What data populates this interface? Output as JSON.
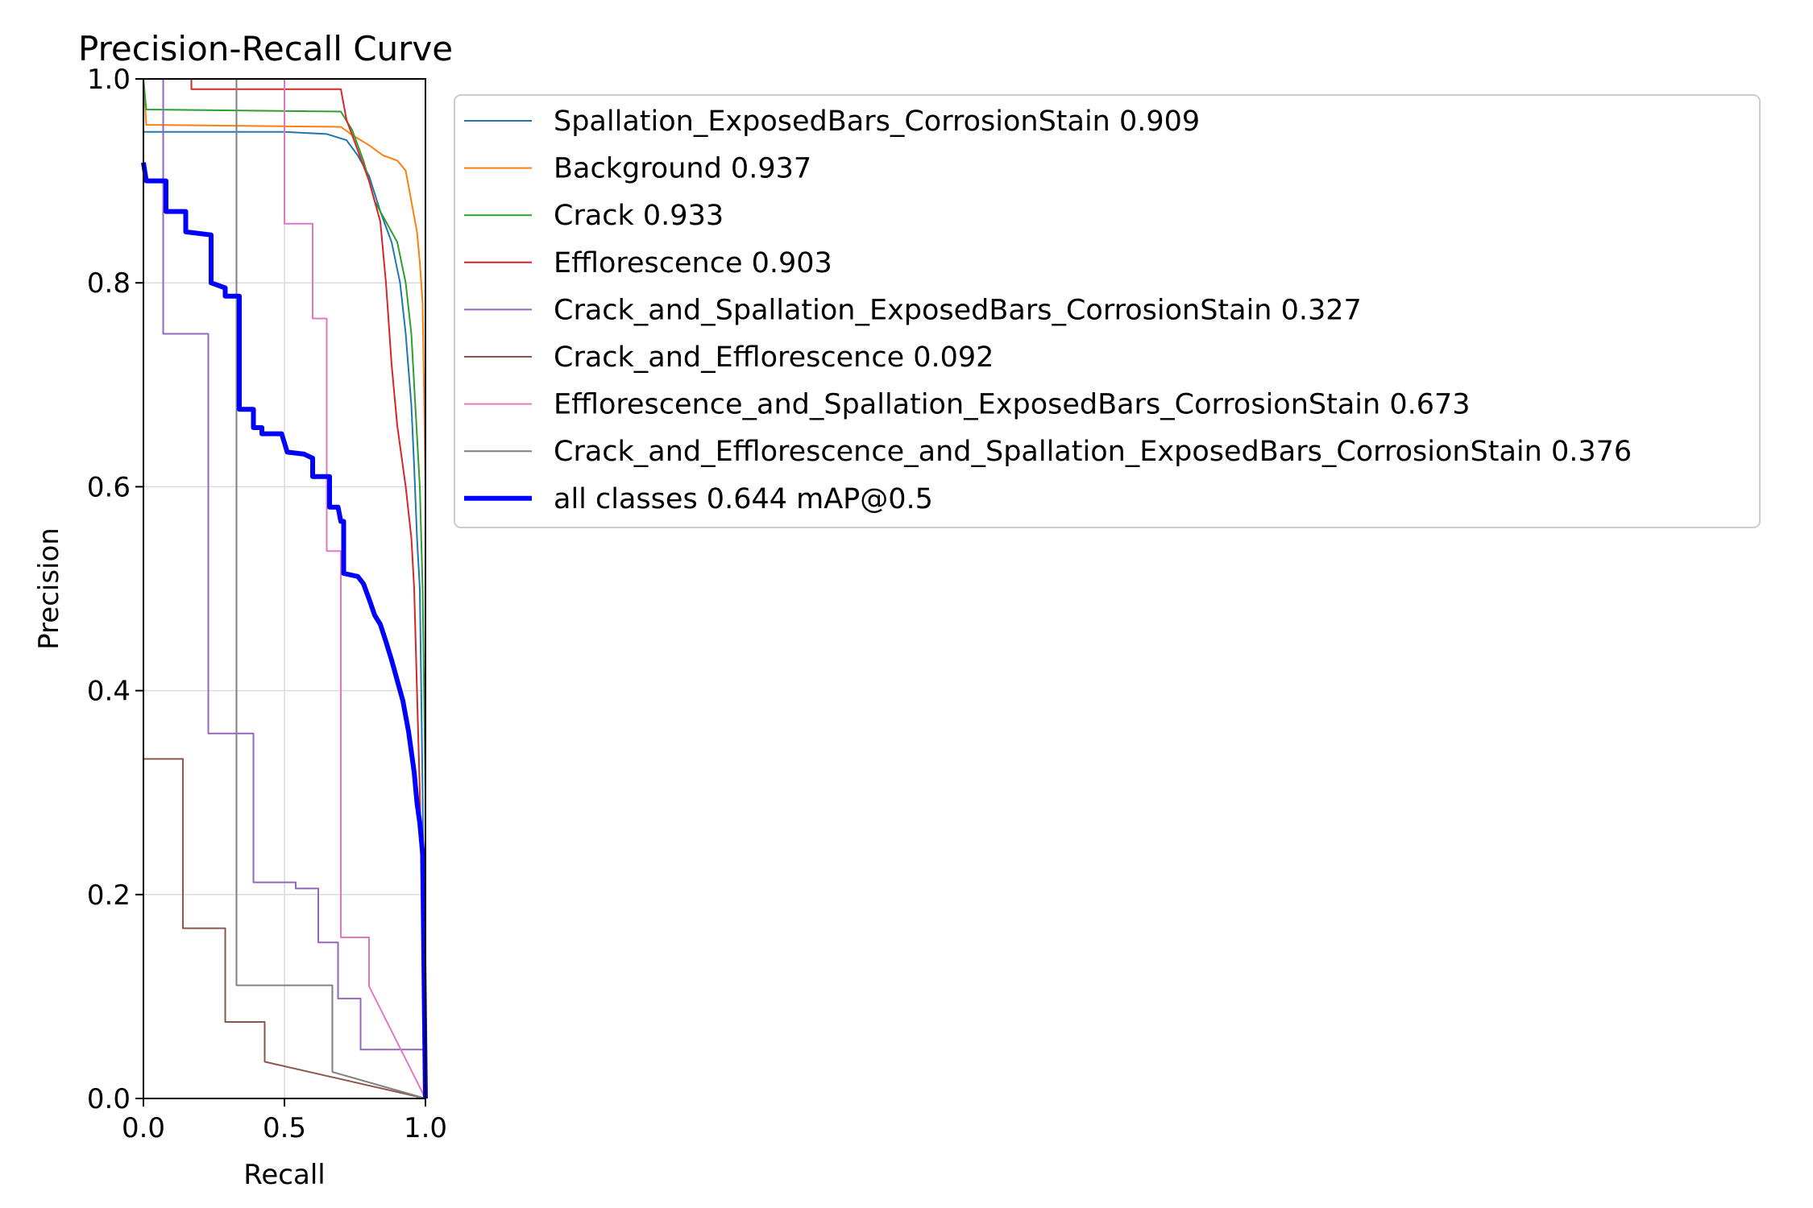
{
  "chart_data": {
    "type": "line",
    "title": "Precision-Recall Curve",
    "xlabel": "Recall",
    "ylabel": "Precision",
    "xlim": [
      0,
      1
    ],
    "ylim": [
      0,
      1
    ],
    "xticks": [
      "0.0",
      "0.5",
      "1.0"
    ],
    "yticks": [
      "0.0",
      "0.2",
      "0.4",
      "0.6",
      "0.8",
      "1.0"
    ],
    "grid": true,
    "legend": "outside-right-top",
    "series": [
      {
        "name": "Spallation_ExposedBars_CorrosionStain 0.909",
        "color": "#1f77b4",
        "width": 2,
        "points": [
          [
            0,
            0.948
          ],
          [
            0.5,
            0.948
          ],
          [
            0.65,
            0.946
          ],
          [
            0.72,
            0.94
          ],
          [
            0.76,
            0.925
          ],
          [
            0.8,
            0.905
          ],
          [
            0.84,
            0.87
          ],
          [
            0.88,
            0.84
          ],
          [
            0.91,
            0.8
          ],
          [
            0.93,
            0.75
          ],
          [
            0.95,
            0.68
          ],
          [
            0.96,
            0.62
          ],
          [
            0.97,
            0.55
          ],
          [
            0.98,
            0.5
          ],
          [
            0.99,
            0.3
          ],
          [
            1.0,
            0.0
          ]
        ]
      },
      {
        "name": "Background 0.937",
        "color": "#ff7f0e",
        "width": 2,
        "points": [
          [
            0,
            1.0
          ],
          [
            0.01,
            0.955
          ],
          [
            0.7,
            0.953
          ],
          [
            0.74,
            0.945
          ],
          [
            0.8,
            0.935
          ],
          [
            0.85,
            0.925
          ],
          [
            0.9,
            0.92
          ],
          [
            0.93,
            0.91
          ],
          [
            0.95,
            0.88
          ],
          [
            0.97,
            0.85
          ],
          [
            0.98,
            0.82
          ],
          [
            0.99,
            0.78
          ],
          [
            1.0,
            0.6
          ],
          [
            1.0,
            0.0
          ]
        ]
      },
      {
        "name": "Crack 0.933",
        "color": "#2ca02c",
        "width": 2,
        "points": [
          [
            0,
            1.0
          ],
          [
            0.01,
            0.97
          ],
          [
            0.7,
            0.968
          ],
          [
            0.74,
            0.95
          ],
          [
            0.78,
            0.92
          ],
          [
            0.82,
            0.88
          ],
          [
            0.86,
            0.86
          ],
          [
            0.9,
            0.84
          ],
          [
            0.93,
            0.8
          ],
          [
            0.95,
            0.75
          ],
          [
            0.96,
            0.7
          ],
          [
            0.97,
            0.65
          ],
          [
            0.98,
            0.6
          ],
          [
            0.99,
            0.5
          ],
          [
            1.0,
            0.3
          ],
          [
            1.0,
            0.0
          ]
        ]
      },
      {
        "name": "Efflorescence 0.903",
        "color": "#d62728",
        "width": 2,
        "points": [
          [
            0.17,
            1.0
          ],
          [
            0.17,
            0.99
          ],
          [
            0.7,
            0.99
          ],
          [
            0.72,
            0.96
          ],
          [
            0.76,
            0.93
          ],
          [
            0.8,
            0.9
          ],
          [
            0.84,
            0.86
          ],
          [
            0.86,
            0.8
          ],
          [
            0.88,
            0.72
          ],
          [
            0.9,
            0.66
          ],
          [
            0.93,
            0.6
          ],
          [
            0.95,
            0.55
          ],
          [
            0.96,
            0.5
          ],
          [
            0.97,
            0.4
          ],
          [
            0.98,
            0.3
          ],
          [
            1.0,
            0.0
          ]
        ]
      },
      {
        "name": "Crack_and_Spallation_ExposedBars_CorrosionStain 0.327",
        "color": "#9467bd",
        "width": 2,
        "points": [
          [
            0.07,
            1.0
          ],
          [
            0.07,
            0.75
          ],
          [
            0.23,
            0.75
          ],
          [
            0.23,
            0.358
          ],
          [
            0.39,
            0.358
          ],
          [
            0.39,
            0.212
          ],
          [
            0.54,
            0.212
          ],
          [
            0.54,
            0.206
          ],
          [
            0.62,
            0.206
          ],
          [
            0.62,
            0.153
          ],
          [
            0.69,
            0.153
          ],
          [
            0.69,
            0.098
          ],
          [
            0.77,
            0.098
          ],
          [
            0.77,
            0.048
          ],
          [
            1.0,
            0.048
          ],
          [
            1.0,
            0.0
          ]
        ]
      },
      {
        "name": "Crack_and_Efflorescence 0.092",
        "color": "#8c564b",
        "width": 2,
        "points": [
          [
            0,
            0.333
          ],
          [
            0.14,
            0.333
          ],
          [
            0.14,
            0.167
          ],
          [
            0.29,
            0.167
          ],
          [
            0.29,
            0.075
          ],
          [
            0.43,
            0.075
          ],
          [
            0.43,
            0.036
          ],
          [
            1.0,
            0.0
          ]
        ]
      },
      {
        "name": "Efflorescence_and_Spallation_ExposedBars_CorrosionStain 0.673",
        "color": "#e377c2",
        "width": 2,
        "points": [
          [
            0.12,
            1.0
          ],
          [
            0.5,
            1.0
          ],
          [
            0.5,
            0.858
          ],
          [
            0.6,
            0.858
          ],
          [
            0.6,
            0.765
          ],
          [
            0.65,
            0.765
          ],
          [
            0.65,
            0.537
          ],
          [
            0.7,
            0.537
          ],
          [
            0.7,
            0.158
          ],
          [
            0.8,
            0.158
          ],
          [
            0.8,
            0.11
          ],
          [
            1.0,
            0.0
          ]
        ]
      },
      {
        "name": "Crack_and_Efflorescence_and_Spallation_ExposedBars_CorrosionStain 0.376",
        "color": "#7f7f7f",
        "width": 2,
        "points": [
          [
            0.33,
            1.0
          ],
          [
            0.33,
            0.111
          ],
          [
            0.67,
            0.111
          ],
          [
            0.67,
            0.026
          ],
          [
            1.0,
            0.0
          ]
        ]
      },
      {
        "name": "all classes 0.644 mAP@0.5",
        "color": "#0000ff",
        "width": 6,
        "points": [
          [
            0,
            0.918
          ],
          [
            0.01,
            0.9
          ],
          [
            0.08,
            0.9
          ],
          [
            0.08,
            0.87
          ],
          [
            0.15,
            0.87
          ],
          [
            0.15,
            0.85
          ],
          [
            0.24,
            0.847
          ],
          [
            0.24,
            0.8
          ],
          [
            0.29,
            0.795
          ],
          [
            0.29,
            0.787
          ],
          [
            0.34,
            0.787
          ],
          [
            0.34,
            0.676
          ],
          [
            0.39,
            0.676
          ],
          [
            0.39,
            0.658
          ],
          [
            0.42,
            0.658
          ],
          [
            0.42,
            0.652
          ],
          [
            0.49,
            0.652
          ],
          [
            0.51,
            0.634
          ],
          [
            0.57,
            0.632
          ],
          [
            0.6,
            0.628
          ],
          [
            0.6,
            0.61
          ],
          [
            0.66,
            0.61
          ],
          [
            0.66,
            0.58
          ],
          [
            0.69,
            0.58
          ],
          [
            0.7,
            0.566
          ],
          [
            0.71,
            0.566
          ],
          [
            0.71,
            0.515
          ],
          [
            0.76,
            0.512
          ],
          [
            0.78,
            0.505
          ],
          [
            0.8,
            0.49
          ],
          [
            0.82,
            0.474
          ],
          [
            0.84,
            0.465
          ],
          [
            0.86,
            0.448
          ],
          [
            0.88,
            0.43
          ],
          [
            0.9,
            0.41
          ],
          [
            0.92,
            0.39
          ],
          [
            0.94,
            0.36
          ],
          [
            0.96,
            0.32
          ],
          [
            0.97,
            0.29
          ],
          [
            0.98,
            0.27
          ],
          [
            0.99,
            0.24
          ],
          [
            1.0,
            0.0
          ]
        ]
      }
    ]
  }
}
